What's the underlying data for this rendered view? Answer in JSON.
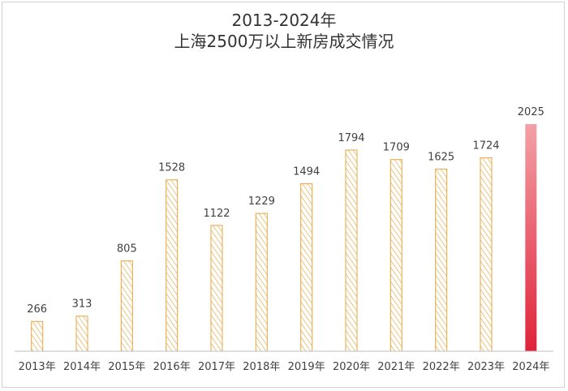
{
  "chart_data": {
    "type": "bar",
    "title": "2013-2024年",
    "subtitle": "上海2500万以上新房成交情况",
    "xlabel": "",
    "ylabel": "",
    "categories": [
      "2013年",
      "2014年",
      "2015年",
      "2016年",
      "2017年",
      "2018年",
      "2019年",
      "2020年",
      "2021年",
      "2022年",
      "2023年",
      "2024年"
    ],
    "values": [
      266,
      313,
      805,
      1528,
      1122,
      1229,
      1494,
      1794,
      1709,
      1625,
      1724,
      2025
    ],
    "ylim": [
      0,
      2300
    ],
    "grid": false,
    "legend": "none",
    "colors": {
      "bar": "#e8a53c",
      "highlight_top": "#f3a0a6",
      "highlight_bottom": "#e0223a",
      "axis": "#bfbfbf"
    }
  }
}
